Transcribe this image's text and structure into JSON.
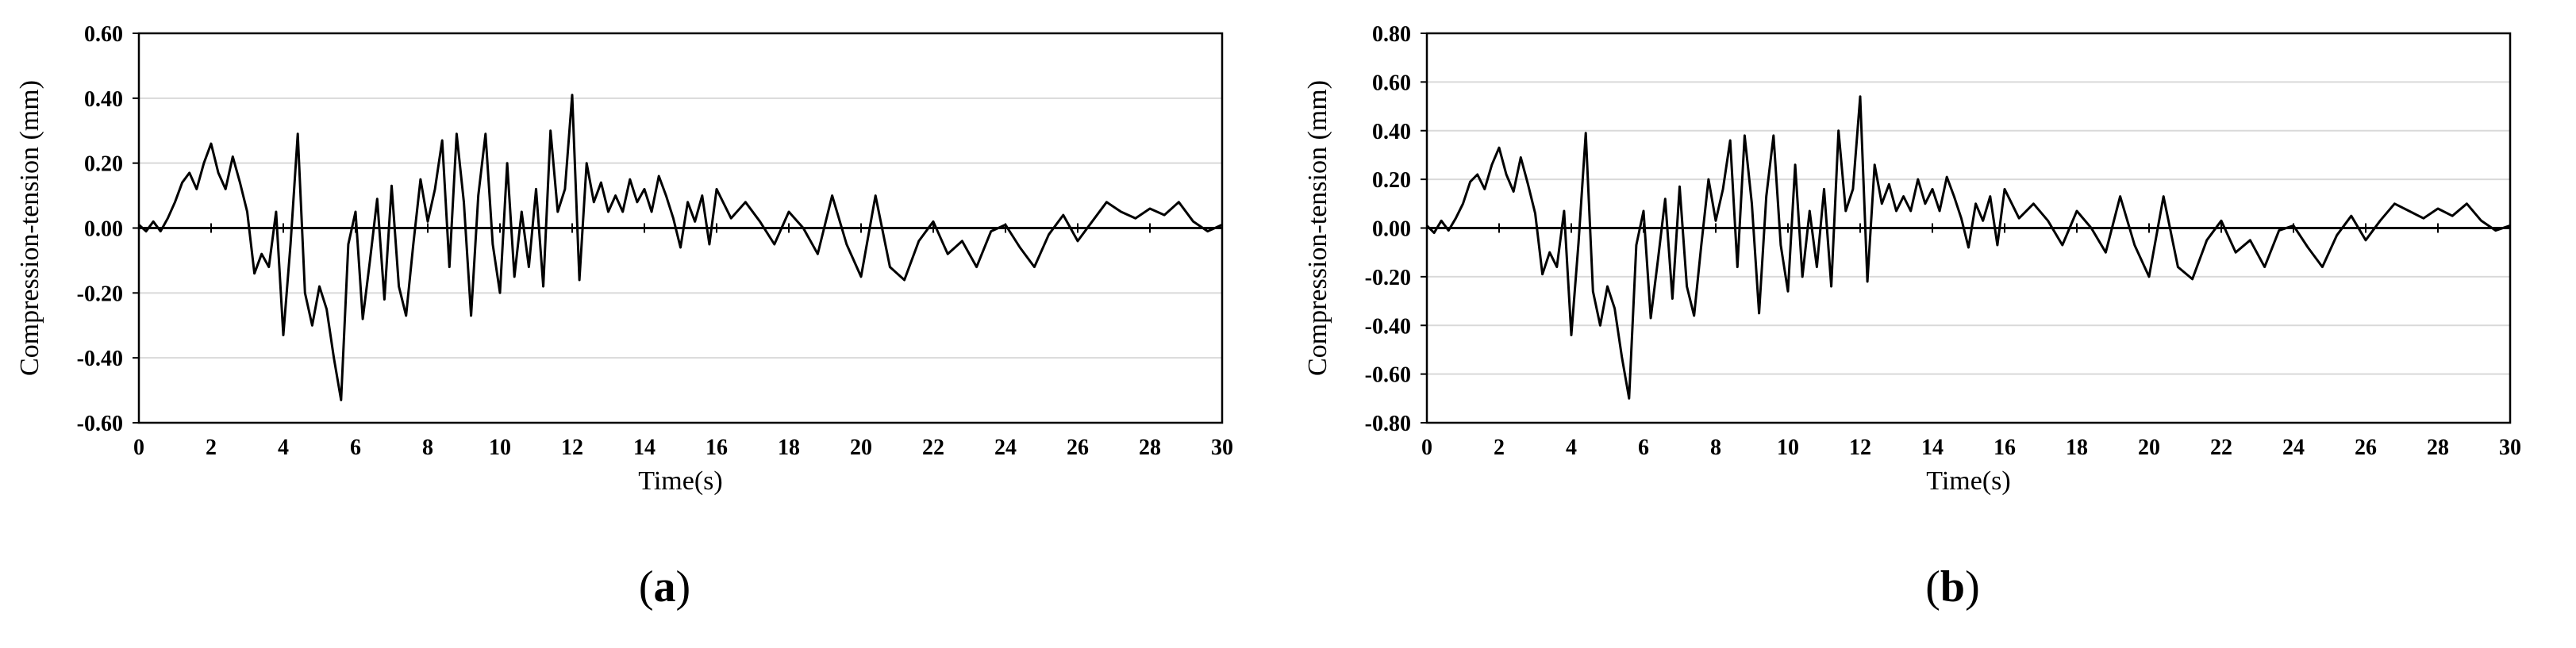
{
  "chart_data": [
    {
      "type": "line",
      "panel_label": "a",
      "xlabel": "Time(s)",
      "ylabel": "Compression-tension (mm)",
      "xlim": [
        0,
        30
      ],
      "ylim": [
        -0.6,
        0.6
      ],
      "x_ticks": [
        0,
        2,
        4,
        6,
        8,
        10,
        12,
        14,
        16,
        18,
        20,
        22,
        24,
        26,
        28,
        30
      ],
      "y_ticks": [
        -0.6,
        -0.4,
        -0.2,
        0.0,
        0.2,
        0.4,
        0.6
      ],
      "y_tick_labels": [
        "-0.60",
        "-0.40",
        "-0.20",
        "0.00",
        "0.20",
        "0.40",
        "0.60"
      ],
      "grid": "horizontal",
      "series": [
        {
          "x": [
            0,
            0.2,
            0.4,
            0.6,
            0.8,
            1.0,
            1.2,
            1.4,
            1.6,
            1.8,
            2.0,
            2.2,
            2.4,
            2.6,
            2.8,
            3.0,
            3.2,
            3.4,
            3.6,
            3.8,
            4.0,
            4.2,
            4.4,
            4.6,
            4.8,
            5.0,
            5.2,
            5.4,
            5.6,
            5.8,
            6.0,
            6.2,
            6.4,
            6.6,
            6.8,
            7.0,
            7.2,
            7.4,
            7.6,
            7.8,
            8.0,
            8.2,
            8.4,
            8.6,
            8.8,
            9.0,
            9.2,
            9.4,
            9.6,
            9.8,
            10.0,
            10.2,
            10.4,
            10.6,
            10.8,
            11.0,
            11.2,
            11.4,
            11.6,
            11.8,
            12.0,
            12.2,
            12.4,
            12.6,
            12.8,
            13.0,
            13.2,
            13.4,
            13.6,
            13.8,
            14.0,
            14.2,
            14.4,
            14.6,
            14.8,
            15.0,
            15.2,
            15.4,
            15.6,
            15.8,
            16.0,
            16.4,
            16.8,
            17.2,
            17.6,
            18.0,
            18.4,
            18.8,
            19.2,
            19.6,
            20.0,
            20.4,
            20.8,
            21.2,
            21.6,
            22.0,
            22.4,
            22.8,
            23.2,
            23.6,
            24.0,
            24.4,
            24.8,
            25.2,
            25.6,
            26.0,
            26.4,
            26.8,
            27.2,
            27.6,
            28.0,
            28.4,
            28.8,
            29.2,
            29.6,
            30.0
          ],
          "y": [
            0.01,
            -0.01,
            0.02,
            -0.01,
            0.03,
            0.08,
            0.14,
            0.17,
            0.12,
            0.2,
            0.26,
            0.17,
            0.12,
            0.22,
            0.14,
            0.05,
            -0.14,
            -0.08,
            -0.12,
            0.05,
            -0.33,
            -0.05,
            0.29,
            -0.2,
            -0.3,
            -0.18,
            -0.25,
            -0.4,
            -0.53,
            -0.05,
            0.05,
            -0.28,
            -0.1,
            0.09,
            -0.22,
            0.13,
            -0.18,
            -0.27,
            -0.05,
            0.15,
            0.02,
            0.12,
            0.27,
            -0.12,
            0.29,
            0.08,
            -0.27,
            0.1,
            0.29,
            -0.05,
            -0.2,
            0.2,
            -0.15,
            0.05,
            -0.12,
            0.12,
            -0.18,
            0.3,
            0.05,
            0.12,
            0.41,
            -0.16,
            0.2,
            0.08,
            0.14,
            0.05,
            0.1,
            0.05,
            0.15,
            0.08,
            0.12,
            0.05,
            0.16,
            0.1,
            0.03,
            -0.06,
            0.08,
            0.02,
            0.1,
            -0.05,
            0.12,
            0.03,
            0.08,
            0.02,
            -0.05,
            0.05,
            0.0,
            -0.08,
            0.1,
            -0.05,
            -0.15,
            0.1,
            -0.12,
            -0.16,
            -0.04,
            0.02,
            -0.08,
            -0.04,
            -0.12,
            -0.01,
            0.01,
            -0.06,
            -0.12,
            -0.02,
            0.04,
            -0.04,
            0.02,
            0.08,
            0.05,
            0.03,
            0.06,
            0.04,
            0.08,
            0.02,
            -0.01,
            0.01
          ]
        }
      ]
    },
    {
      "type": "line",
      "panel_label": "b",
      "xlabel": "Time(s)",
      "ylabel": "Compression-tension (mm)",
      "xlim": [
        0,
        30
      ],
      "ylim": [
        -0.8,
        0.8
      ],
      "x_ticks": [
        0,
        2,
        4,
        6,
        8,
        10,
        12,
        14,
        16,
        18,
        20,
        22,
        24,
        26,
        28,
        30
      ],
      "y_ticks": [
        -0.8,
        -0.6,
        -0.4,
        -0.2,
        0.0,
        0.2,
        0.4,
        0.6,
        0.8
      ],
      "y_tick_labels": [
        "-0.80",
        "-0.60",
        "-0.40",
        "-0.20",
        "0.00",
        "0.20",
        "0.40",
        "0.60",
        "0.80"
      ],
      "grid": "horizontal",
      "series": [
        {
          "x": [
            0,
            0.2,
            0.4,
            0.6,
            0.8,
            1.0,
            1.2,
            1.4,
            1.6,
            1.8,
            2.0,
            2.2,
            2.4,
            2.6,
            2.8,
            3.0,
            3.2,
            3.4,
            3.6,
            3.8,
            4.0,
            4.2,
            4.4,
            4.6,
            4.8,
            5.0,
            5.2,
            5.4,
            5.6,
            5.8,
            6.0,
            6.2,
            6.4,
            6.6,
            6.8,
            7.0,
            7.2,
            7.4,
            7.6,
            7.8,
            8.0,
            8.2,
            8.4,
            8.6,
            8.8,
            9.0,
            9.2,
            9.4,
            9.6,
            9.8,
            10.0,
            10.2,
            10.4,
            10.6,
            10.8,
            11.0,
            11.2,
            11.4,
            11.6,
            11.8,
            12.0,
            12.2,
            12.4,
            12.6,
            12.8,
            13.0,
            13.2,
            13.4,
            13.6,
            13.8,
            14.0,
            14.2,
            14.4,
            14.6,
            14.8,
            15.0,
            15.2,
            15.4,
            15.6,
            15.8,
            16.0,
            16.4,
            16.8,
            17.2,
            17.6,
            18.0,
            18.4,
            18.8,
            19.2,
            19.6,
            20.0,
            20.4,
            20.8,
            21.2,
            21.6,
            22.0,
            22.4,
            22.8,
            23.2,
            23.6,
            24.0,
            24.4,
            24.8,
            25.2,
            25.6,
            26.0,
            26.4,
            26.8,
            27.2,
            27.6,
            28.0,
            28.4,
            28.8,
            29.2,
            29.6,
            30.0
          ],
          "y": [
            0.01,
            -0.02,
            0.03,
            -0.01,
            0.04,
            0.1,
            0.19,
            0.22,
            0.16,
            0.26,
            0.33,
            0.22,
            0.15,
            0.29,
            0.18,
            0.06,
            -0.19,
            -0.1,
            -0.16,
            0.07,
            -0.44,
            -0.06,
            0.39,
            -0.26,
            -0.4,
            -0.24,
            -0.33,
            -0.53,
            -0.7,
            -0.07,
            0.07,
            -0.37,
            -0.13,
            0.12,
            -0.29,
            0.17,
            -0.24,
            -0.36,
            -0.07,
            0.2,
            0.03,
            0.16,
            0.36,
            -0.16,
            0.38,
            0.1,
            -0.35,
            0.13,
            0.38,
            -0.07,
            -0.26,
            0.26,
            -0.2,
            0.07,
            -0.16,
            0.16,
            -0.24,
            0.4,
            0.07,
            0.16,
            0.54,
            -0.22,
            0.26,
            0.1,
            0.18,
            0.07,
            0.13,
            0.07,
            0.2,
            0.1,
            0.16,
            0.07,
            0.21,
            0.13,
            0.04,
            -0.08,
            0.1,
            0.03,
            0.13,
            -0.07,
            0.16,
            0.04,
            0.1,
            0.03,
            -0.07,
            0.07,
            0.0,
            -0.1,
            0.13,
            -0.07,
            -0.2,
            0.13,
            -0.16,
            -0.21,
            -0.05,
            0.03,
            -0.1,
            -0.05,
            -0.16,
            -0.01,
            0.01,
            -0.08,
            -0.16,
            -0.03,
            0.05,
            -0.05,
            0.03,
            0.1,
            0.07,
            0.04,
            0.08,
            0.05,
            0.1,
            0.03,
            -0.01,
            0.01
          ]
        }
      ]
    }
  ]
}
